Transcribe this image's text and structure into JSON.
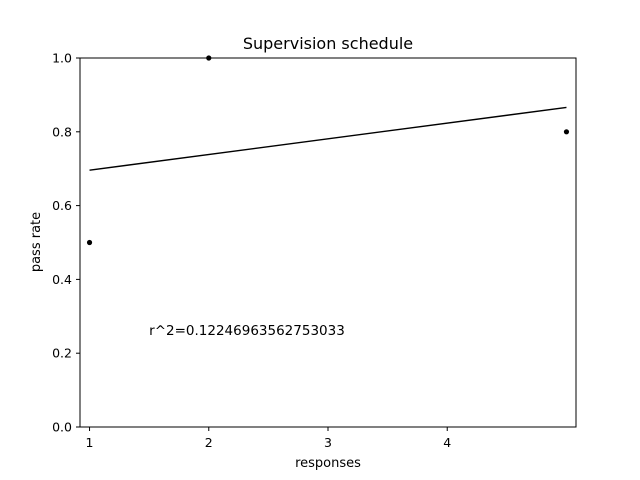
{
  "chart_data": {
    "type": "scatter",
    "title": "Supervision schedule",
    "xlabel": "responses",
    "ylabel": "pass rate",
    "xlim": [
      0.92,
      5.08
    ],
    "ylim": [
      0.0,
      1.0
    ],
    "xticks": [
      1,
      2,
      3,
      4
    ],
    "xtick_labels": [
      "1",
      "2",
      "3",
      "4"
    ],
    "yticks": [
      0.0,
      0.2,
      0.4,
      0.6,
      0.8,
      1.0
    ],
    "ytick_labels": [
      "0.0",
      "0.2",
      "0.4",
      "0.6",
      "0.8",
      "1.0"
    ],
    "grid": false,
    "series": [
      {
        "x": [
          1,
          2,
          5
        ],
        "y": [
          0.5,
          1.0,
          0.8
        ]
      }
    ],
    "fit_line": {
      "x": [
        1,
        5
      ],
      "y": [
        0.696,
        0.866
      ]
    },
    "annotation": {
      "text": "r^2=0.12246963562753033",
      "x": 1.5,
      "y": 0.25
    },
    "colors": {
      "points": "#000000",
      "line": "#000000"
    }
  }
}
